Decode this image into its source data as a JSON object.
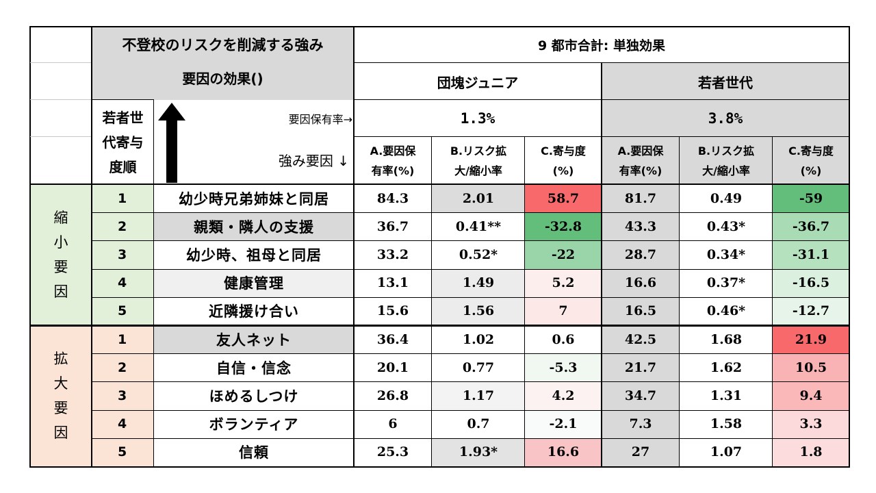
{
  "header": {
    "title": "不登校のリスクを削減する強み",
    "subtitle": "要因の効果()",
    "group_title": "9 都市合計: 単独効果",
    "col_group_a": "団塊ジュニア",
    "col_group_b": "若者世代",
    "rank_label_lines": [
      "若者世",
      "代寄与",
      "度順"
    ],
    "rate_label": "要因保有率→",
    "factor_label": "強み要因 ↓",
    "rate_a": "1.3%",
    "rate_b": "3.8%",
    "sub_a": [
      "A.要因保",
      "有率(%)"
    ],
    "sub_b": [
      "B.リスク拡",
      "大/縮小率"
    ],
    "sub_c": [
      "C.寄与度",
      "(%)"
    ]
  },
  "groups": [
    {
      "label": [
        "縮",
        "小",
        "要",
        "因"
      ],
      "color": "#e2efd9",
      "rows": [
        {
          "rank": "1",
          "factor": "幼少時兄弟姉妹と同居",
          "a1": "84.3",
          "b1": "2.01",
          "c1": "58.7",
          "a2": "81.7",
          "b2": "0.49",
          "c2": "-59"
        },
        {
          "rank": "2",
          "factor": "親類・隣人の支援",
          "a1": "36.7",
          "b1": "0.41**",
          "c1": "-32.8",
          "a2": "43.3",
          "b2": "0.43*",
          "c2": "-36.7"
        },
        {
          "rank": "3",
          "factor": "幼少時、祖母と同居",
          "a1": "33.2",
          "b1": "0.52*",
          "c1": "-22",
          "a2": "28.7",
          "b2": "0.34*",
          "c2": "-31.1"
        },
        {
          "rank": "4",
          "factor": "健康管理",
          "a1": "13.1",
          "b1": "1.49",
          "c1": "5.2",
          "a2": "16.6",
          "b2": "0.37*",
          "c2": "-16.5"
        },
        {
          "rank": "5",
          "factor": "近隣援け合い",
          "a1": "15.6",
          "b1": "1.56",
          "c1": "7",
          "a2": "16.5",
          "b2": "0.46*",
          "c2": "-12.7"
        }
      ]
    },
    {
      "label": [
        "拡",
        "大",
        "要",
        "因"
      ],
      "color": "#fbe4d5",
      "rows": [
        {
          "rank": "1",
          "factor": "友人ネット",
          "a1": "36.4",
          "b1": "1.02",
          "c1": "0.6",
          "a2": "42.5",
          "b2": "1.68",
          "c2": "21.9"
        },
        {
          "rank": "2",
          "factor": "自信・信念",
          "a1": "20.1",
          "b1": "0.77",
          "c1": "-5.3",
          "a2": "21.7",
          "b2": "1.62",
          "c2": "10.5"
        },
        {
          "rank": "3",
          "factor": "ほめるしつけ",
          "a1": "26.8",
          "b1": "1.17",
          "c1": "4.2",
          "a2": "34.7",
          "b2": "1.31",
          "c2": "9.4"
        },
        {
          "rank": "4",
          "factor": "ボランティア",
          "a1": "6",
          "b1": "0.7",
          "c1": "-2.1",
          "a2": "7.3",
          "b2": "1.58",
          "c2": "3.3"
        },
        {
          "rank": "5",
          "factor": "信頼",
          "a1": "25.3",
          "b1": "1.93*",
          "c1": "16.6",
          "a2": "27",
          "b2": "1.07",
          "c2": "1.8"
        }
      ]
    }
  ],
  "colors": {
    "header_gray": "#d9d9d9",
    "light_gray": "#ededed",
    "strong_red": "#f8696b",
    "strong_green": "#63be7b"
  }
}
